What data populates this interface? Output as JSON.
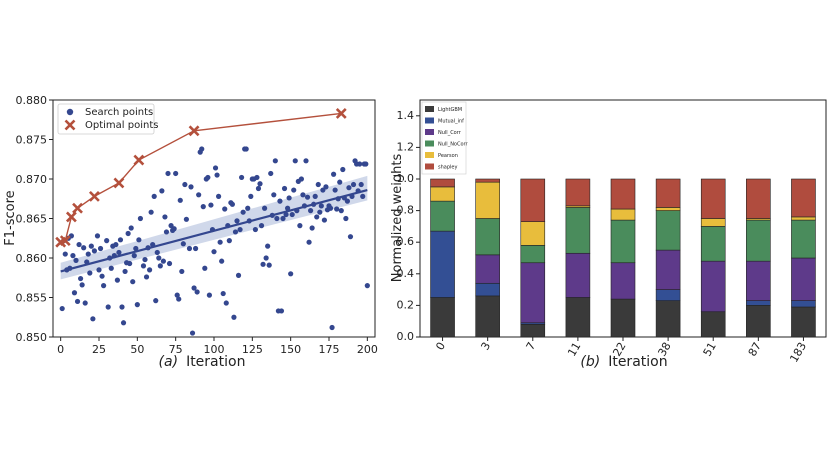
{
  "chart_data": [
    {
      "type": "scatter",
      "ylabel": "F1-score",
      "xlim": [
        -5,
        205
      ],
      "ylim": [
        0.85,
        0.88
      ],
      "x_ticks": [
        "0",
        "25",
        "50",
        "75",
        "100",
        "125",
        "150",
        "175",
        "200"
      ],
      "y_ticks": [
        "0.850",
        "0.855",
        "0.860",
        "0.865",
        "0.870",
        "0.875",
        "0.880"
      ],
      "caption_letter": "(a)",
      "caption_text": "Iteration",
      "legend": [
        {
          "label": "Search points",
          "color": "#34478f"
        },
        {
          "label": "Optimal points",
          "color": "#b4503c"
        }
      ],
      "search_points": [
        [
          1,
          0.8536
        ],
        [
          2,
          0.8622
        ],
        [
          3,
          0.8605
        ],
        [
          4,
          0.8585
        ],
        [
          5,
          0.8625
        ],
        [
          6,
          0.8587
        ],
        [
          7,
          0.8628
        ],
        [
          8,
          0.8603
        ],
        [
          9,
          0.8556
        ],
        [
          10,
          0.8597
        ],
        [
          11,
          0.8545
        ],
        [
          12,
          0.8617
        ],
        [
          13,
          0.8574
        ],
        [
          14,
          0.8566
        ],
        [
          15,
          0.8613
        ],
        [
          16,
          0.8543
        ],
        [
          17,
          0.8595
        ],
        [
          18,
          0.8605
        ],
        [
          19,
          0.8581
        ],
        [
          20,
          0.8615
        ],
        [
          21,
          0.8523
        ],
        [
          22,
          0.8609
        ],
        [
          24,
          0.8628
        ],
        [
          25,
          0.8585
        ],
        [
          26,
          0.8612
        ],
        [
          27,
          0.8577
        ],
        [
          28,
          0.8565
        ],
        [
          30,
          0.8622
        ],
        [
          31,
          0.8538
        ],
        [
          32,
          0.86
        ],
        [
          33,
          0.8587
        ],
        [
          34,
          0.8615
        ],
        [
          35,
          0.8603
        ],
        [
          36,
          0.8617
        ],
        [
          37,
          0.8572
        ],
        [
          38,
          0.8607
        ],
        [
          39,
          0.8623
        ],
        [
          40,
          0.8538
        ],
        [
          41,
          0.8518
        ],
        [
          42,
          0.8583
        ],
        [
          43,
          0.8594
        ],
        [
          44,
          0.8631
        ],
        [
          45,
          0.8593
        ],
        [
          46,
          0.8638
        ],
        [
          47,
          0.857
        ],
        [
          48,
          0.8603
        ],
        [
          49,
          0.8612
        ],
        [
          50,
          0.8541
        ],
        [
          51,
          0.8623
        ],
        [
          52,
          0.865
        ],
        [
          54,
          0.859
        ],
        [
          55,
          0.8598
        ],
        [
          56,
          0.8576
        ],
        [
          57,
          0.8613
        ],
        [
          58,
          0.8585
        ],
        [
          59,
          0.8658
        ],
        [
          60,
          0.8617
        ],
        [
          61,
          0.8678
        ],
        [
          62,
          0.8546
        ],
        [
          63,
          0.8607
        ],
        [
          64,
          0.86
        ],
        [
          65,
          0.859
        ],
        [
          66,
          0.8685
        ],
        [
          67,
          0.8596
        ],
        [
          68,
          0.8652
        ],
        [
          69,
          0.8633
        ],
        [
          70,
          0.8707
        ],
        [
          71,
          0.8593
        ],
        [
          72,
          0.8641
        ],
        [
          73,
          0.8635
        ],
        [
          74,
          0.8637
        ],
        [
          75,
          0.8707
        ],
        [
          76,
          0.8553
        ],
        [
          77,
          0.8548
        ],
        [
          78,
          0.8673
        ],
        [
          79,
          0.8583
        ],
        [
          80,
          0.8618
        ],
        [
          81,
          0.8693
        ],
        [
          82,
          0.8649
        ],
        [
          84,
          0.8612
        ],
        [
          85,
          0.869
        ],
        [
          86,
          0.8505
        ],
        [
          87,
          0.8562
        ],
        [
          88,
          0.8612
        ],
        [
          89,
          0.8557
        ],
        [
          90,
          0.868
        ],
        [
          91,
          0.8734
        ],
        [
          92,
          0.8738
        ],
        [
          93,
          0.8665
        ],
        [
          94,
          0.8587
        ],
        [
          95,
          0.87
        ],
        [
          96,
          0.8702
        ],
        [
          97,
          0.8553
        ],
        [
          98,
          0.8667
        ],
        [
          99,
          0.8636
        ],
        [
          100,
          0.8608
        ],
        [
          101,
          0.8714
        ],
        [
          102,
          0.8705
        ],
        [
          103,
          0.8678
        ],
        [
          104,
          0.862
        ],
        [
          105,
          0.8596
        ],
        [
          106,
          0.8555
        ],
        [
          107,
          0.8662
        ],
        [
          108,
          0.8543
        ],
        [
          109,
          0.8641
        ],
        [
          110,
          0.8622
        ],
        [
          111,
          0.867
        ],
        [
          112,
          0.8668
        ],
        [
          113,
          0.8525
        ],
        [
          114,
          0.8633
        ],
        [
          115,
          0.8647
        ],
        [
          116,
          0.8578
        ],
        [
          117,
          0.8636
        ],
        [
          118,
          0.8702
        ],
        [
          119,
          0.8658
        ],
        [
          120,
          0.8738
        ],
        [
          121,
          0.8738
        ],
        [
          122,
          0.8663
        ],
        [
          123,
          0.8647
        ],
        [
          124,
          0.8678
        ],
        [
          125,
          0.87
        ],
        [
          126,
          0.87
        ],
        [
          127,
          0.8636
        ],
        [
          128,
          0.8702
        ],
        [
          129,
          0.8688
        ],
        [
          130,
          0.8694
        ],
        [
          131,
          0.8641
        ],
        [
          132,
          0.8592
        ],
        [
          133,
          0.8663
        ],
        [
          134,
          0.86
        ],
        [
          135,
          0.8615
        ],
        [
          136,
          0.8591
        ],
        [
          137,
          0.8707
        ],
        [
          138,
          0.8654
        ],
        [
          139,
          0.868
        ],
        [
          140,
          0.8723
        ],
        [
          141,
          0.865
        ],
        [
          142,
          0.8533
        ],
        [
          143,
          0.8672
        ],
        [
          144,
          0.8533
        ],
        [
          145,
          0.865
        ],
        [
          146,
          0.8688
        ],
        [
          147,
          0.8655
        ],
        [
          148,
          0.8663
        ],
        [
          149,
          0.8676
        ],
        [
          150,
          0.858
        ],
        [
          151,
          0.8655
        ],
        [
          152,
          0.8686
        ],
        [
          153,
          0.8723
        ],
        [
          154,
          0.866
        ],
        [
          155,
          0.8697
        ],
        [
          156,
          0.8641
        ],
        [
          157,
          0.87
        ],
        [
          158,
          0.868
        ],
        [
          159,
          0.8666
        ],
        [
          160,
          0.8723
        ],
        [
          161,
          0.8677
        ],
        [
          162,
          0.862
        ],
        [
          163,
          0.866
        ],
        [
          164,
          0.8638
        ],
        [
          165,
          0.8668
        ],
        [
          166,
          0.8678
        ],
        [
          167,
          0.8652
        ],
        [
          168,
          0.8693
        ],
        [
          169,
          0.8658
        ],
        [
          170,
          0.8666
        ],
        [
          171,
          0.8686
        ],
        [
          172,
          0.8648
        ],
        [
          173,
          0.869
        ],
        [
          174,
          0.8661
        ],
        [
          175,
          0.8666
        ],
        [
          176,
          0.8663
        ],
        [
          177,
          0.8512
        ],
        [
          178,
          0.8706
        ],
        [
          179,
          0.8686
        ],
        [
          180,
          0.8662
        ],
        [
          181,
          0.8675
        ],
        [
          182,
          0.8696
        ],
        [
          183,
          0.866
        ],
        [
          184,
          0.8712
        ],
        [
          185,
          0.8676
        ],
        [
          186,
          0.865
        ],
        [
          187,
          0.8672
        ],
        [
          188,
          0.8689
        ],
        [
          189,
          0.8627
        ],
        [
          190,
          0.8678
        ],
        [
          191,
          0.8693
        ],
        [
          192,
          0.8723
        ],
        [
          193,
          0.8719
        ],
        [
          194,
          0.8685
        ],
        [
          195,
          0.8719
        ],
        [
          196,
          0.8693
        ],
        [
          197,
          0.8678
        ],
        [
          198,
          0.8719
        ],
        [
          199,
          0.8719
        ],
        [
          200,
          0.8565
        ]
      ],
      "optimal_points": {
        "x": [
          0,
          3,
          7,
          11,
          22,
          38,
          51,
          87,
          183
        ],
        "y": [
          0.862,
          0.8622,
          0.8652,
          0.8663,
          0.8678,
          0.8695,
          0.8724,
          0.8761,
          0.8783
        ]
      },
      "regression": {
        "x": [
          0,
          200
        ],
        "y": [
          0.8583,
          0.8686
        ],
        "band_lower": [
          0.8573,
          0.8673
        ],
        "band_upper": [
          0.8594,
          0.8704
        ]
      }
    },
    {
      "type": "bar",
      "stacked": true,
      "ylabel": "Normalized weights",
      "ylim": [
        0,
        1.5
      ],
      "y_ticks": [
        "0.0",
        "0.2",
        "0.4",
        "0.6",
        "0.8",
        "1.0",
        "1.2",
        "1.4"
      ],
      "caption_letter": "(b)",
      "caption_text": "Iteration",
      "categories": [
        "0",
        "3",
        "7",
        "11",
        "22",
        "38",
        "51",
        "87",
        "183"
      ],
      "series": [
        {
          "name": "LightGBM",
          "color": "#3a3a3a",
          "values": [
            0.25,
            0.26,
            0.08,
            0.25,
            0.24,
            0.23,
            0.16,
            0.2,
            0.19
          ]
        },
        {
          "name": "Mutual_inf",
          "color": "#334f94",
          "values": [
            0.42,
            0.08,
            0.01,
            0.0,
            0.0,
            0.07,
            0.0,
            0.03,
            0.04
          ]
        },
        {
          "name": "Null_Corr",
          "color": "#5e3a8a",
          "values": [
            0.0,
            0.18,
            0.38,
            0.28,
            0.23,
            0.25,
            0.32,
            0.25,
            0.27
          ]
        },
        {
          "name": "Null_NoCorr",
          "color": "#4a8c5c",
          "values": [
            0.19,
            0.23,
            0.11,
            0.29,
            0.27,
            0.25,
            0.22,
            0.26,
            0.24
          ]
        },
        {
          "name": "Pearson",
          "color": "#e8bd3c",
          "values": [
            0.09,
            0.23,
            0.15,
            0.01,
            0.07,
            0.02,
            0.05,
            0.01,
            0.02
          ]
        },
        {
          "name": "shapley",
          "color": "#b04c3e",
          "values": [
            0.05,
            0.02,
            0.27,
            0.17,
            0.19,
            0.18,
            0.25,
            0.25,
            0.24
          ]
        }
      ]
    }
  ]
}
